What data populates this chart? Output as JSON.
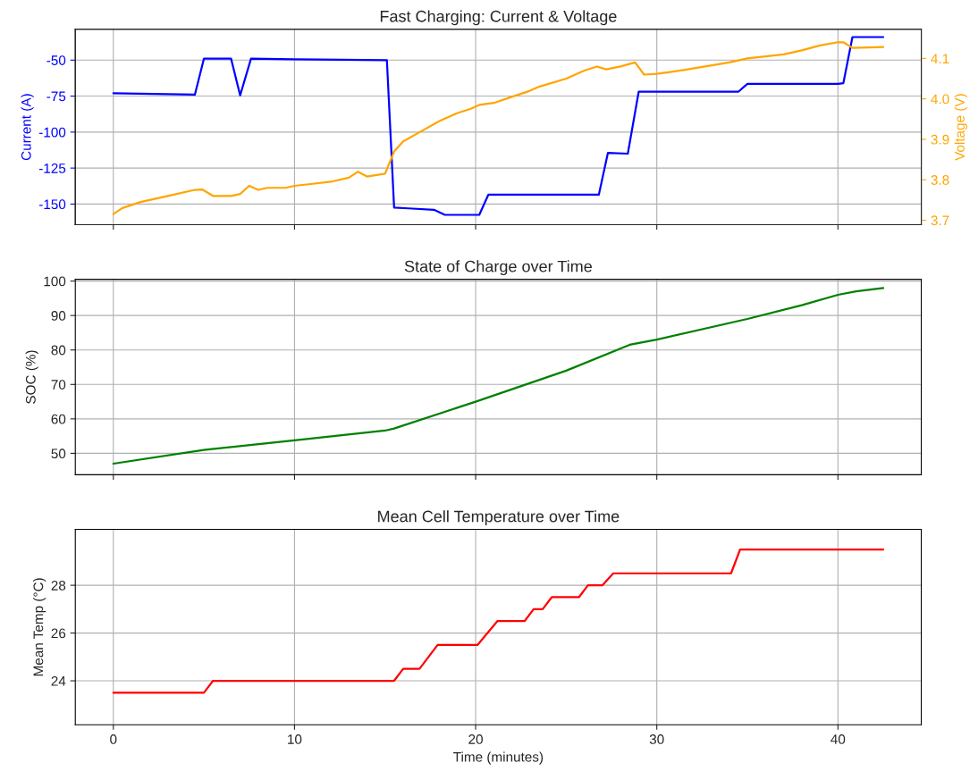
{
  "chart_data": [
    {
      "type": "line",
      "title": "Fast Charging: Current & Voltage",
      "ylabel": "Current (A)",
      "y2label": "Voltage (V)",
      "xlim": [
        -2.1,
        44.6
      ],
      "xticks": [
        0,
        10,
        20,
        30,
        40
      ],
      "ylim": [
        -164.3,
        -28.6
      ],
      "yticks": [
        -150,
        -125,
        -100,
        -75,
        -50
      ],
      "y2lim": [
        3.689,
        4.172
      ],
      "y2ticks": [
        3.7,
        3.8,
        3.9,
        {
          "value": 4,
          "label": "4.0"
        },
        4.1
      ],
      "grid": true,
      "tick_labels": "y",
      "series": [
        {
          "color": "#0000ff",
          "x": [
            0,
            4.5,
            5,
            6.5,
            7,
            7.6,
            10,
            15.1,
            15.5,
            16.3,
            17.7,
            18.3,
            20.2,
            20.7,
            26.8,
            27.3,
            28.4,
            29,
            34.5,
            35,
            40,
            40.3,
            40.8,
            42.5
          ],
          "values": [
            -73,
            -74,
            -49,
            -49,
            -74.5,
            -49,
            -49.5,
            -50,
            -152.5,
            -153,
            -154,
            -157.5,
            -157.5,
            -143.5,
            -143.5,
            -114.5,
            -115,
            -72,
            -72,
            -66.5,
            -66.5,
            -66,
            -34,
            -34
          ]
        },
        {
          "color": "#ffa500",
          "axis": "y2",
          "x": [
            0,
            0.5,
            1.5,
            3,
            4.5,
            4.9,
            5.5,
            6.5,
            7,
            7.5,
            8,
            8.5,
            9.5,
            10,
            11,
            12,
            13,
            13.5,
            14,
            15,
            15.5,
            16,
            17,
            18,
            19,
            19.7,
            20.2,
            21,
            22,
            23,
            23.5,
            25,
            26,
            26.7,
            27.2,
            28,
            28.8,
            29.3,
            30,
            31,
            32,
            34,
            35,
            37,
            38,
            39,
            40,
            40.3,
            40.8,
            42.5
          ],
          "values": [
            3.715,
            3.73,
            3.745,
            3.76,
            3.775,
            3.776,
            3.76,
            3.76,
            3.765,
            3.785,
            3.775,
            3.78,
            3.78,
            3.785,
            3.79,
            3.795,
            3.805,
            3.82,
            3.808,
            3.815,
            3.87,
            3.895,
            3.92,
            3.945,
            3.965,
            3.975,
            3.985,
            3.99,
            4.005,
            4.02,
            4.03,
            4.05,
            4.07,
            4.08,
            4.073,
            4.08,
            4.09,
            4.06,
            4.062,
            4.068,
            4.075,
            4.09,
            4.1,
            4.11,
            4.12,
            4.132,
            4.14,
            4.14,
            4.126,
            4.128
          ]
        }
      ]
    },
    {
      "type": "line",
      "title": "State of Charge over Time",
      "ylabel": "SOC (%)",
      "xlim": [
        -2.1,
        44.6
      ],
      "xticks": [
        0,
        10,
        20,
        30,
        40
      ],
      "ylim": [
        43.8,
        100.5
      ],
      "yticks": [
        50,
        60,
        70,
        80,
        90,
        100
      ],
      "grid": true,
      "tick_labels": "y",
      "series": [
        {
          "color": "#008000",
          "x": [
            0,
            5,
            10,
            15,
            15.5,
            20,
            25,
            28.5,
            30,
            35,
            38,
            40,
            41,
            42.5
          ],
          "values": [
            47,
            51,
            53.8,
            56.6,
            57.2,
            65,
            74,
            81.5,
            83,
            89,
            93,
            96,
            97,
            98
          ]
        }
      ]
    },
    {
      "type": "line",
      "title": "Mean Cell Temperature over Time",
      "xlabel": "Time (minutes)",
      "ylabel": "Mean Temp (°C)",
      "xlim": [
        -2.1,
        44.6
      ],
      "xticks": [
        0,
        10,
        20,
        30,
        40
      ],
      "ylim": [
        22.16,
        30.34
      ],
      "yticks": [
        24,
        26,
        28
      ],
      "grid": true,
      "series": [
        {
          "color": "#ff0000",
          "x": [
            0,
            5,
            5.5,
            15.5,
            16,
            16.9,
            17.9,
            20.1,
            21.2,
            22.7,
            23.2,
            23.7,
            24.2,
            25.7,
            26.2,
            27,
            27.6,
            34.1,
            34.6,
            42.5
          ],
          "values": [
            23.5,
            23.5,
            24,
            24,
            24.5,
            24.5,
            25.5,
            25.5,
            26.5,
            26.5,
            27,
            27,
            27.5,
            27.5,
            28,
            28,
            28.5,
            28.5,
            29.5,
            29.5
          ]
        }
      ]
    }
  ]
}
